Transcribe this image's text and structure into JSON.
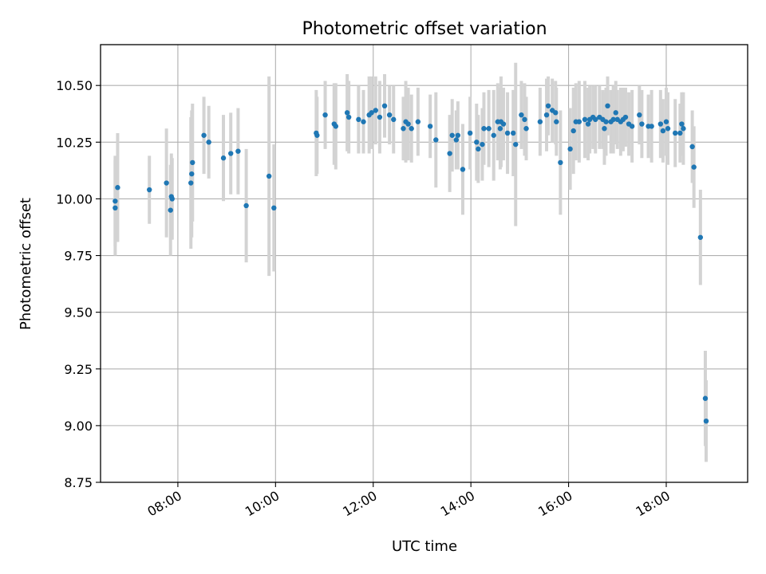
{
  "chart_data": {
    "type": "scatter",
    "title": "Photometric offset variation",
    "xlabel": "UTC time",
    "ylabel": "Photometric offset",
    "x_ticks": [
      "08:00",
      "10:00",
      "12:00",
      "14:00",
      "16:00",
      "18:00"
    ],
    "y_ticks": [
      "8.75",
      "9.00",
      "9.25",
      "9.50",
      "9.75",
      "10.00",
      "10.25",
      "10.50"
    ],
    "xlim": [
      "06:25",
      "19:40"
    ],
    "ylim": [
      8.75,
      10.68
    ],
    "grid": true,
    "marker_color": "#1f77b4",
    "errorbar_color": "#d3d3d3",
    "points": [
      {
        "t": "06:43",
        "y": 9.96,
        "err": 0.21
      },
      {
        "t": "06:43",
        "y": 9.99,
        "err": 0.2
      },
      {
        "t": "06:46",
        "y": 10.05,
        "err": 0.24
      },
      {
        "t": "07:25",
        "y": 10.04,
        "err": 0.15
      },
      {
        "t": "07:46",
        "y": 10.07,
        "err": 0.24
      },
      {
        "t": "07:51",
        "y": 9.95,
        "err": 0.2
      },
      {
        "t": "07:52",
        "y": 10.01,
        "err": 0.19
      },
      {
        "t": "07:53",
        "y": 10.0,
        "err": 0.18
      },
      {
        "t": "08:16",
        "y": 10.07,
        "err": 0.29
      },
      {
        "t": "08:17",
        "y": 10.11,
        "err": 0.28
      },
      {
        "t": "08:18",
        "y": 10.16,
        "err": 0.26
      },
      {
        "t": "08:32",
        "y": 10.28,
        "err": 0.17
      },
      {
        "t": "08:38",
        "y": 10.25,
        "err": 0.16
      },
      {
        "t": "08:56",
        "y": 10.18,
        "err": 0.19
      },
      {
        "t": "09:05",
        "y": 10.2,
        "err": 0.18
      },
      {
        "t": "09:14",
        "y": 10.21,
        "err": 0.19
      },
      {
        "t": "09:24",
        "y": 9.97,
        "err": 0.25
      },
      {
        "t": "09:52",
        "y": 10.1,
        "err": 0.44
      },
      {
        "t": "09:58",
        "y": 9.96,
        "err": 0.28
      },
      {
        "t": "10:50",
        "y": 10.29,
        "err": 0.19
      },
      {
        "t": "10:51",
        "y": 10.28,
        "err": 0.17
      },
      {
        "t": "11:01",
        "y": 10.37,
        "err": 0.15
      },
      {
        "t": "11:12",
        "y": 10.33,
        "err": 0.18
      },
      {
        "t": "11:14",
        "y": 10.32,
        "err": 0.19
      },
      {
        "t": "11:28",
        "y": 10.38,
        "err": 0.17
      },
      {
        "t": "11:30",
        "y": 10.36,
        "err": 0.16
      },
      {
        "t": "11:42",
        "y": 10.35,
        "err": 0.15
      },
      {
        "t": "11:48",
        "y": 10.34,
        "err": 0.14
      },
      {
        "t": "11:55",
        "y": 10.37,
        "err": 0.17
      },
      {
        "t": "11:58",
        "y": 10.38,
        "err": 0.16
      },
      {
        "t": "12:03",
        "y": 10.39,
        "err": 0.15
      },
      {
        "t": "12:08",
        "y": 10.36,
        "err": 0.16
      },
      {
        "t": "12:14",
        "y": 10.41,
        "err": 0.14
      },
      {
        "t": "12:20",
        "y": 10.37,
        "err": 0.13
      },
      {
        "t": "12:25",
        "y": 10.35,
        "err": 0.15
      },
      {
        "t": "12:37",
        "y": 10.31,
        "err": 0.14
      },
      {
        "t": "12:40",
        "y": 10.34,
        "err": 0.18
      },
      {
        "t": "12:43",
        "y": 10.33,
        "err": 0.16
      },
      {
        "t": "12:47",
        "y": 10.31,
        "err": 0.15
      },
      {
        "t": "12:55",
        "y": 10.34,
        "err": 0.15
      },
      {
        "t": "13:10",
        "y": 10.32,
        "err": 0.14
      },
      {
        "t": "13:17",
        "y": 10.26,
        "err": 0.21
      },
      {
        "t": "13:34",
        "y": 10.2,
        "err": 0.17
      },
      {
        "t": "13:37",
        "y": 10.28,
        "err": 0.16
      },
      {
        "t": "13:42",
        "y": 10.26,
        "err": 0.13
      },
      {
        "t": "13:44",
        "y": 10.28,
        "err": 0.15
      },
      {
        "t": "13:50",
        "y": 10.13,
        "err": 0.2
      },
      {
        "t": "13:59",
        "y": 10.29,
        "err": 0.16
      },
      {
        "t": "14:07",
        "y": 10.25,
        "err": 0.17
      },
      {
        "t": "14:09",
        "y": 10.22,
        "err": 0.15
      },
      {
        "t": "14:14",
        "y": 10.24,
        "err": 0.16
      },
      {
        "t": "14:16",
        "y": 10.31,
        "err": 0.16
      },
      {
        "t": "14:22",
        "y": 10.31,
        "err": 0.17
      },
      {
        "t": "14:28",
        "y": 10.28,
        "err": 0.2
      },
      {
        "t": "14:33",
        "y": 10.34,
        "err": 0.17
      },
      {
        "t": "14:36",
        "y": 10.31,
        "err": 0.18
      },
      {
        "t": "14:37",
        "y": 10.34,
        "err": 0.2
      },
      {
        "t": "14:40",
        "y": 10.33,
        "err": 0.16
      },
      {
        "t": "14:45",
        "y": 10.29,
        "err": 0.18
      },
      {
        "t": "14:52",
        "y": 10.29,
        "err": 0.19
      },
      {
        "t": "14:55",
        "y": 10.24,
        "err": 0.36
      },
      {
        "t": "15:02",
        "y": 10.37,
        "err": 0.15
      },
      {
        "t": "15:06",
        "y": 10.35,
        "err": 0.16
      },
      {
        "t": "15:08",
        "y": 10.31,
        "err": 0.14
      },
      {
        "t": "15:25",
        "y": 10.34,
        "err": 0.15
      },
      {
        "t": "15:33",
        "y": 10.37,
        "err": 0.16
      },
      {
        "t": "15:35",
        "y": 10.41,
        "err": 0.13
      },
      {
        "t": "15:40",
        "y": 10.39,
        "err": 0.14
      },
      {
        "t": "15:44",
        "y": 10.38,
        "err": 0.14
      },
      {
        "t": "15:45",
        "y": 10.34,
        "err": 0.15
      },
      {
        "t": "15:50",
        "y": 10.16,
        "err": 0.23
      },
      {
        "t": "16:02",
        "y": 10.22,
        "err": 0.18
      },
      {
        "t": "16:06",
        "y": 10.3,
        "err": 0.19
      },
      {
        "t": "16:09",
        "y": 10.34,
        "err": 0.17
      },
      {
        "t": "16:13",
        "y": 10.34,
        "err": 0.18
      },
      {
        "t": "16:20",
        "y": 10.35,
        "err": 0.17
      },
      {
        "t": "16:24",
        "y": 10.33,
        "err": 0.16
      },
      {
        "t": "16:26",
        "y": 10.35,
        "err": 0.15
      },
      {
        "t": "16:30",
        "y": 10.36,
        "err": 0.14
      },
      {
        "t": "16:33",
        "y": 10.35,
        "err": 0.15
      },
      {
        "t": "16:38",
        "y": 10.36,
        "err": 0.14
      },
      {
        "t": "16:42",
        "y": 10.35,
        "err": 0.13
      },
      {
        "t": "16:44",
        "y": 10.31,
        "err": 0.16
      },
      {
        "t": "16:46",
        "y": 10.34,
        "err": 0.15
      },
      {
        "t": "16:48",
        "y": 10.41,
        "err": 0.13
      },
      {
        "t": "16:52",
        "y": 10.34,
        "err": 0.14
      },
      {
        "t": "16:55",
        "y": 10.35,
        "err": 0.15
      },
      {
        "t": "16:58",
        "y": 10.38,
        "err": 0.14
      },
      {
        "t": "17:00",
        "y": 10.35,
        "err": 0.13
      },
      {
        "t": "17:04",
        "y": 10.34,
        "err": 0.15
      },
      {
        "t": "17:07",
        "y": 10.35,
        "err": 0.14
      },
      {
        "t": "17:10",
        "y": 10.36,
        "err": 0.13
      },
      {
        "t": "17:14",
        "y": 10.33,
        "err": 0.14
      },
      {
        "t": "17:18",
        "y": 10.32,
        "err": 0.16
      },
      {
        "t": "17:27",
        "y": 10.37,
        "err": 0.13
      },
      {
        "t": "17:30",
        "y": 10.33,
        "err": 0.15
      },
      {
        "t": "17:38",
        "y": 10.32,
        "err": 0.14
      },
      {
        "t": "17:42",
        "y": 10.32,
        "err": 0.16
      },
      {
        "t": "17:53",
        "y": 10.33,
        "err": 0.15
      },
      {
        "t": "17:56",
        "y": 10.3,
        "err": 0.14
      },
      {
        "t": "18:00",
        "y": 10.34,
        "err": 0.15
      },
      {
        "t": "18:02",
        "y": 10.31,
        "err": 0.16
      },
      {
        "t": "18:11",
        "y": 10.29,
        "err": 0.15
      },
      {
        "t": "18:17",
        "y": 10.29,
        "err": 0.13
      },
      {
        "t": "18:19",
        "y": 10.33,
        "err": 0.14
      },
      {
        "t": "18:21",
        "y": 10.31,
        "err": 0.16
      },
      {
        "t": "18:32",
        "y": 10.23,
        "err": 0.16
      },
      {
        "t": "18:34",
        "y": 10.14,
        "err": 0.18
      },
      {
        "t": "18:42",
        "y": 9.83,
        "err": 0.21
      },
      {
        "t": "18:48",
        "y": 9.12,
        "err": 0.21
      },
      {
        "t": "18:49",
        "y": 9.02,
        "err": 0.18
      }
    ]
  }
}
